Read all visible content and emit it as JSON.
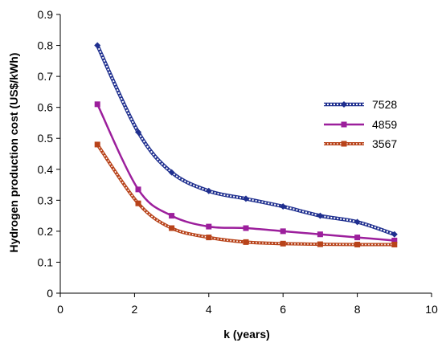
{
  "chart_data": {
    "type": "line",
    "title": "",
    "xlabel": "k (years)",
    "ylabel": "Hydrogen production cost (US$/kWh)",
    "xlim": [
      0,
      10
    ],
    "ylim": [
      0,
      0.9
    ],
    "xticks": [
      0,
      2,
      4,
      6,
      8,
      10
    ],
    "yticks": [
      0,
      0.1,
      0.2,
      0.3,
      0.4,
      0.5,
      0.6,
      0.7,
      0.8,
      0.9
    ],
    "x_tick_labels": [
      "0",
      "2",
      "4",
      "6",
      "8",
      "10"
    ],
    "y_tick_labels": [
      "0",
      "0.1",
      "0.2",
      "0.3",
      "0.4",
      "0.5",
      "0.6",
      "0.7",
      "0.8",
      "0.9"
    ],
    "grid": false,
    "legend_position": "right",
    "series": [
      {
        "name": "7528",
        "color": "#1f2f8f",
        "marker": "diamond",
        "line_style": "hatched",
        "x": [
          1,
          2.1,
          3,
          4,
          5,
          6,
          7,
          8,
          9
        ],
        "y": [
          0.8,
          0.52,
          0.39,
          0.33,
          0.305,
          0.28,
          0.25,
          0.23,
          0.19
        ]
      },
      {
        "name": "4859",
        "color": "#9c1f9c",
        "marker": "square",
        "line_style": "solid",
        "x": [
          1,
          2.1,
          3,
          4,
          5,
          6,
          7,
          8,
          9
        ],
        "y": [
          0.61,
          0.335,
          0.25,
          0.215,
          0.21,
          0.2,
          0.19,
          0.18,
          0.17
        ]
      },
      {
        "name": "3567",
        "color": "#b8431a",
        "marker": "square",
        "line_style": "beaded",
        "x": [
          1,
          2.1,
          3,
          4,
          5,
          6,
          7,
          8,
          9
        ],
        "y": [
          0.48,
          0.29,
          0.21,
          0.18,
          0.165,
          0.16,
          0.158,
          0.157,
          0.157
        ]
      }
    ]
  }
}
